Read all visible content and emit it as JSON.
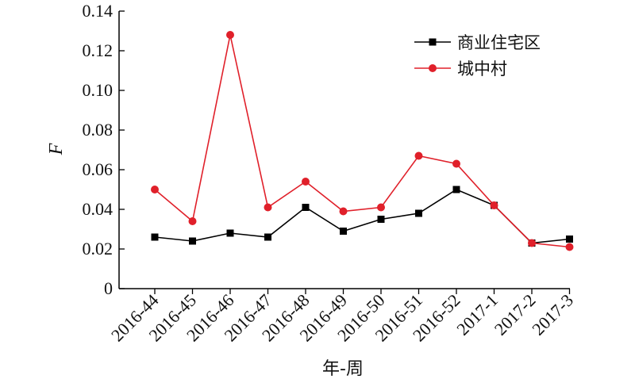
{
  "chart_data": {
    "type": "line",
    "title": "",
    "xlabel": "年-周",
    "ylabel": "F",
    "ylim": [
      0,
      0.14
    ],
    "yticks": [
      0,
      0.02,
      0.04,
      0.06,
      0.08,
      0.1,
      0.12,
      0.14
    ],
    "ytick_labels": [
      "0",
      "0.02",
      "0.04",
      "0.06",
      "0.08",
      "0.10",
      "0.12",
      "0.14"
    ],
    "categories": [
      "2016-44",
      "2016-45",
      "2016-46",
      "2016-47",
      "2016-48",
      "2016-49",
      "2016-50",
      "2016-51",
      "2016-52",
      "2017-1",
      "2017-2",
      "2017-3"
    ],
    "grid": false,
    "legend_position": "top-right",
    "series": [
      {
        "name": "商业住宅区",
        "color": "#000000",
        "marker": "square",
        "values": [
          0.026,
          0.024,
          0.028,
          0.026,
          0.041,
          0.029,
          0.035,
          0.038,
          0.05,
          0.042,
          0.023,
          0.025
        ]
      },
      {
        "name": "城中村",
        "color": "#e0202a",
        "marker": "circle",
        "values": [
          0.05,
          0.034,
          0.128,
          0.041,
          0.054,
          0.039,
          0.041,
          0.067,
          0.063,
          0.042,
          0.023,
          0.021
        ]
      }
    ]
  }
}
